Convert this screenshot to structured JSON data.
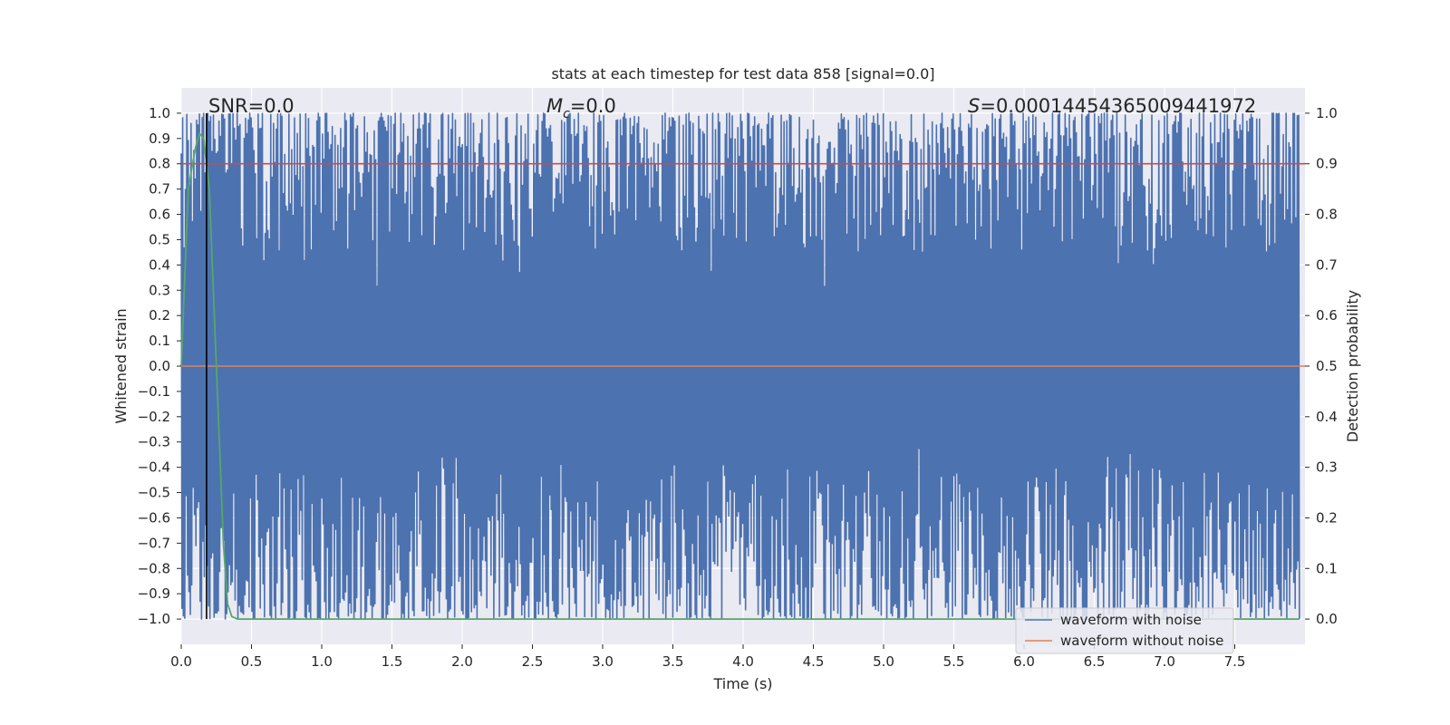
{
  "chart_data": {
    "type": "line",
    "title": "stats at each timestep for test data 858 [signal=0.0]",
    "xlabel": "Time (s)",
    "ylabel": "Whitened strain",
    "y2label": "Detection probability",
    "xlim": [
      0.0,
      8.0
    ],
    "ylim": [
      -1.1,
      1.1
    ],
    "y2lim": [
      -0.05,
      1.05
    ],
    "xticks": [
      0.0,
      0.5,
      1.0,
      1.5,
      2.0,
      2.5,
      3.0,
      3.5,
      4.0,
      4.5,
      5.0,
      5.5,
      6.0,
      6.5,
      7.0,
      7.5
    ],
    "xtick_labels": [
      "0.0",
      "0.5",
      "1.0",
      "1.5",
      "2.0",
      "2.5",
      "3.0",
      "3.5",
      "4.0",
      "4.5",
      "5.0",
      "5.5",
      "6.0",
      "6.5",
      "7.0",
      "7.5"
    ],
    "yticks": [
      1.0,
      0.9,
      0.8,
      0.7,
      0.6,
      0.5,
      0.4,
      0.3,
      0.2,
      0.1,
      0.0,
      -0.1,
      -0.2,
      -0.3,
      -0.4,
      -0.5,
      -0.6,
      -0.7,
      -0.8,
      -0.9,
      -1.0
    ],
    "ytick_labels": [
      "1.0",
      "0.9",
      "0.8",
      "0.7",
      "0.6",
      "0.5",
      "0.4",
      "0.3",
      "0.2",
      "0.1",
      "0.0",
      "−0.1",
      "−0.2",
      "−0.3",
      "−0.4",
      "−0.5",
      "−0.6",
      "−0.7",
      "−0.8",
      "−0.9",
      "−1.0"
    ],
    "y2ticks": [
      1.0,
      0.9,
      0.8,
      0.7,
      0.6,
      0.5,
      0.4,
      0.3,
      0.2,
      0.1,
      0.0
    ],
    "y2tick_labels": [
      "1.0",
      "0.9",
      "0.8",
      "0.7",
      "0.6",
      "0.5",
      "0.4",
      "0.3",
      "0.2",
      "0.1",
      "0.0"
    ],
    "annotations": {
      "snr": "SNR=0.0",
      "mc": "M",
      "mc_sub": "c",
      "mc_value": "=0.0",
      "s_symbol": "S",
      "s_value": "=0.00014454365009441972"
    },
    "detection_threshold": 0.9,
    "marker_time": 0.18,
    "legend": {
      "placement": "bottom-right",
      "entries": [
        "waveform with noise",
        "waveform without noise"
      ]
    },
    "series": [
      {
        "name": "waveform with noise",
        "axis": "left",
        "description": "noisy whitened strain oscillating between -1.0 and 1.0 over 0–8 s",
        "range": [
          -1.0,
          1.0
        ],
        "samples": 1600,
        "seed": 858
      },
      {
        "name": "waveform without noise",
        "axis": "left",
        "x": [
          0.0,
          8.0
        ],
        "values": [
          0.0,
          0.0
        ]
      },
      {
        "name": "detection probability",
        "axis": "right",
        "x": [
          0.0,
          0.05,
          0.1,
          0.13,
          0.16,
          0.2,
          0.25,
          0.3,
          0.33,
          0.36,
          0.4,
          8.0
        ],
        "values": [
          0.5,
          0.85,
          0.93,
          0.96,
          0.95,
          0.85,
          0.5,
          0.15,
          0.03,
          0.005,
          0.0,
          0.0
        ]
      }
    ],
    "colors": {
      "noise": "#4c72b0",
      "clean": "#dd8452",
      "prob": "#55a868",
      "threshold": "#c44e52",
      "marker": "#000000",
      "axes_bg": "#eaeaf2",
      "grid": "#ffffff"
    }
  }
}
